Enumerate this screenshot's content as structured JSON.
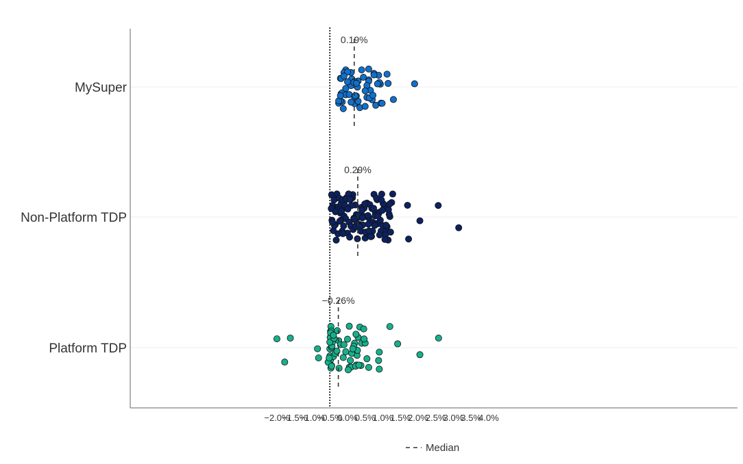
{
  "chart_data": {
    "type": "scatter",
    "orientation": "horizontal-strip",
    "title": "",
    "xlabel": "",
    "ylabel": "",
    "xlim": [
      -2.4,
      4.3
    ],
    "x_ticks": [
      -2.0,
      -1.5,
      -1.0,
      -0.5,
      0.0,
      0.5,
      1.0,
      1.5,
      2.0,
      2.5,
      3.0,
      3.5,
      4.0
    ],
    "x_tick_labels": [
      "−2.0%",
      "−1.5%",
      "−1.0%",
      "−0.5%",
      "0.0%",
      "0.5%",
      "1.0%",
      "1.5%",
      "2.0%",
      "2.5%",
      "3.0%",
      "3.5%",
      "4.0%"
    ],
    "categories": [
      "MySuper",
      "Non-Platform TDP",
      "Platform TDP"
    ],
    "reference_line": {
      "x": -0.5,
      "style": "dotted",
      "color": "#000000"
    },
    "grid": "horizontal lines at categories",
    "legend": {
      "placement": "bottom-center",
      "entries": [
        {
          "label": "Median",
          "style": "dashed"
        }
      ]
    },
    "series": [
      {
        "name": "MySuper",
        "color": "#1170cc",
        "median": 0.19,
        "median_label": "0.19%",
        "values": [
          -0.18,
          -0.2,
          -0.15,
          -0.12,
          -0.05,
          0.05,
          0.1,
          0.2,
          0.25,
          0.3,
          0.55,
          0.6,
          0.7,
          0.75,
          0.65,
          0.88,
          1.12,
          1.3,
          -0.25,
          -0.15,
          -0.05,
          0.1,
          0.2,
          0.3,
          0.45,
          0.6,
          0.8,
          0.95,
          1.15,
          1.9,
          -0.2,
          -0.1,
          0.0,
          0.12,
          0.2,
          0.28,
          0.35,
          0.55,
          0.62,
          0.75,
          0.93,
          0.98,
          -0.25,
          -0.18,
          -0.05,
          0.1,
          0.22,
          0.4,
          0.5,
          0.6,
          0.72,
          0.9,
          -0.2,
          -0.1,
          0.0,
          0.18,
          0.25,
          0.5,
          0.85
        ]
      },
      {
        "name": "Non-Platform TDP",
        "color": "#0c2260",
        "median": 0.29,
        "median_label": "0.29%",
        "values": [
          -0.45,
          -0.42,
          -0.38,
          -0.35,
          -0.3,
          -0.28,
          -0.25,
          -0.2,
          -0.18,
          -0.15,
          -0.1,
          -0.05,
          0.0,
          0.05,
          0.1,
          0.15,
          0.2,
          0.25,
          0.3,
          0.35,
          0.4,
          0.45,
          0.5,
          0.55,
          0.6,
          0.65,
          0.7,
          0.75,
          0.8,
          0.85,
          0.9,
          0.95,
          1.0,
          1.05,
          1.1,
          1.15,
          1.2,
          1.25,
          -0.44,
          -0.36,
          -0.27,
          -0.19,
          -0.11,
          -0.03,
          0.06,
          0.14,
          0.22,
          0.31,
          0.38,
          0.47,
          0.56,
          0.63,
          0.71,
          0.79,
          0.88,
          0.97,
          1.03,
          1.12,
          1.22,
          -0.4,
          -0.32,
          -0.22,
          -0.13,
          -0.06,
          0.03,
          0.11,
          0.18,
          0.27,
          0.36,
          0.43,
          0.52,
          0.59,
          0.68,
          0.77,
          0.84,
          0.93,
          1.01,
          1.09,
          1.18,
          -0.46,
          -0.37,
          -0.29,
          -0.17,
          -0.08,
          0.01,
          0.09,
          0.19,
          0.28,
          0.33,
          0.42,
          0.51,
          0.61,
          0.69,
          0.78,
          0.86,
          0.96,
          1.07,
          1.16,
          1.28,
          -0.43,
          -0.34,
          -0.24,
          -0.14,
          -0.04,
          0.07,
          0.16,
          0.24,
          0.34,
          0.41,
          0.49,
          0.58,
          0.66,
          0.74,
          0.82,
          0.91,
          0.99,
          1.06,
          1.19,
          1.7,
          2.05,
          1.73,
          2.57,
          3.15
        ]
      },
      {
        "name": "Platform TDP",
        "color": "#17b08c",
        "median": -0.26,
        "median_label": "−0.26%",
        "values": [
          -2.0,
          -1.78,
          -1.62,
          -0.85,
          -0.82,
          -0.5,
          -0.5,
          -0.5,
          -0.49,
          -0.48,
          -0.48,
          -0.47,
          -0.46,
          -0.45,
          -0.44,
          -0.42,
          -0.4,
          -0.35,
          -0.3,
          -0.25,
          -0.2,
          -0.1,
          -0.05,
          0.0,
          0.05,
          0.1,
          0.15,
          0.2,
          0.25,
          0.3,
          0.35,
          0.4,
          0.5,
          0.6,
          0.9,
          1.2,
          1.42,
          -0.5,
          -0.48,
          -0.45,
          -0.38,
          -0.24,
          -0.12,
          0.02,
          0.08,
          0.18,
          0.27,
          0.38,
          0.47,
          0.88,
          0.9,
          0.12,
          0.28,
          0.46,
          0.23,
          0.55,
          0.05,
          2.05,
          2.58,
          -0.55,
          -0.52,
          -0.47,
          0.15,
          0.32,
          0.24,
          -0.29,
          -0.4,
          -0.45
        ]
      }
    ]
  }
}
